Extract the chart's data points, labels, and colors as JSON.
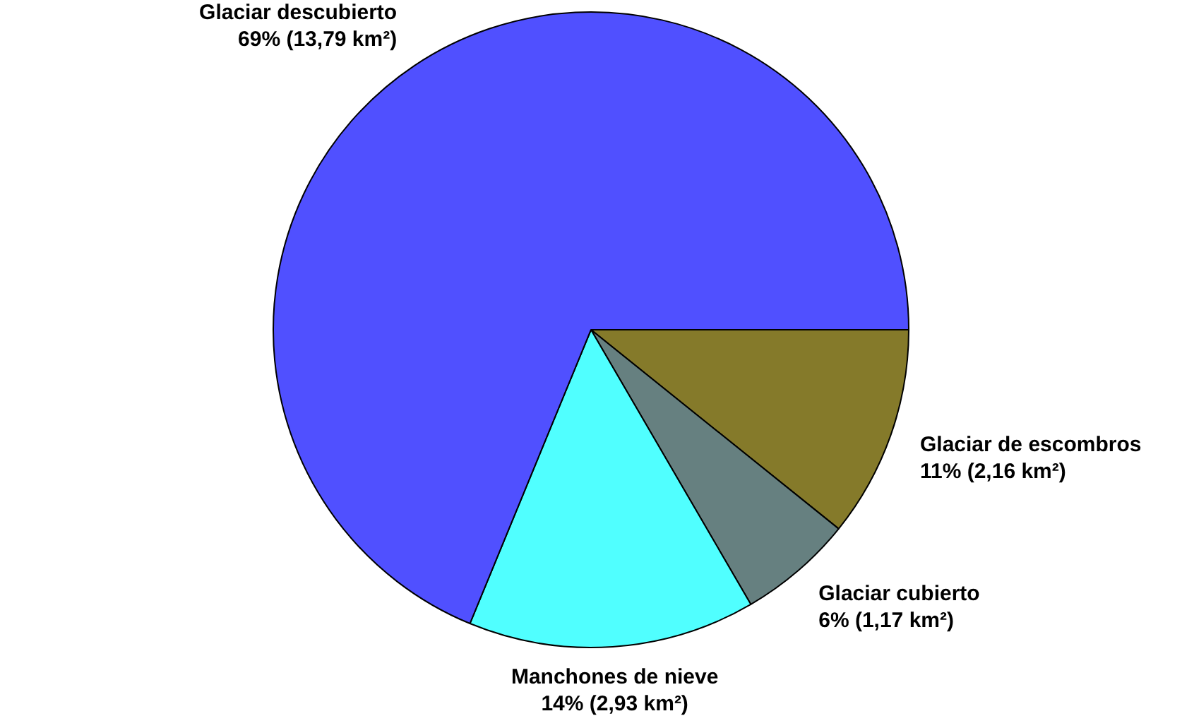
{
  "chart_data": {
    "type": "pie",
    "categories": [
      "Glaciar de escombros",
      "Glaciar cubierto",
      "Manchones de nieve",
      "Glaciar descubierto"
    ],
    "values": [
      2.16,
      1.17,
      2.93,
      13.79
    ],
    "colors": [
      "#857a2a",
      "#668080",
      "#50ffff",
      "#5050ff"
    ],
    "value_labels": [
      "11% (2,16 km²)",
      "6% (1,17 km²)",
      "14% (2,93 km²)",
      "69% (13,79 km²)"
    ],
    "legend": false
  }
}
